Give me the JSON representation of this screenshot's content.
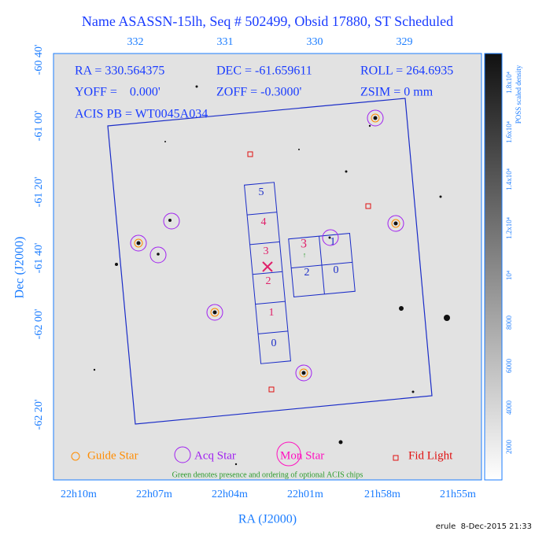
{
  "title": "Name ASASSN-15lh, Seq # 502499, Obsid 17880, ST Scheduled",
  "info": [
    "RA = 330.564375",
    "DEC = -61.659611",
    "ROLL = 264.6935",
    "YOFF =    0.000'",
    "ZOFF = -0.3000'",
    "ZSIM = 0 mm",
    "ACIS PB = WT0045A034"
  ],
  "top_axis_labels": [
    "332",
    "331",
    "330",
    "329"
  ],
  "left_axis_labels": [
    "-60 40'",
    "-61 00'",
    "-61 20'",
    "-61 40'",
    "-62 00'",
    "-62 20'"
  ],
  "bottom_axis_labels": [
    "22h10m",
    "22h07m",
    "22h04m",
    "22h01m",
    "21h58m",
    "21h55m"
  ],
  "x_axis_title": "RA (J2000)",
  "y_axis_title": "Dec (J2000)",
  "colorbar_title": "POSS scaled density",
  "colorbar_labels": [
    "2000",
    "4000",
    "6000",
    "8000",
    "10⁴",
    "1.2x10⁴",
    "1.4x10⁴",
    "1.6x10⁴",
    "1.8x10⁴"
  ],
  "s_chip_labels": [
    "5",
    "4",
    "3",
    "2",
    "1",
    "0"
  ],
  "i_chip_labels": [
    "3",
    "1",
    "2",
    "0"
  ],
  "legend": [
    "Guide Star",
    "Acq Star",
    "Mon Star",
    "Fid Light"
  ],
  "note": "Green denotes presence and ordering of optional ACIS chips",
  "footer": "erule  8-Dec-2015 21:33"
}
